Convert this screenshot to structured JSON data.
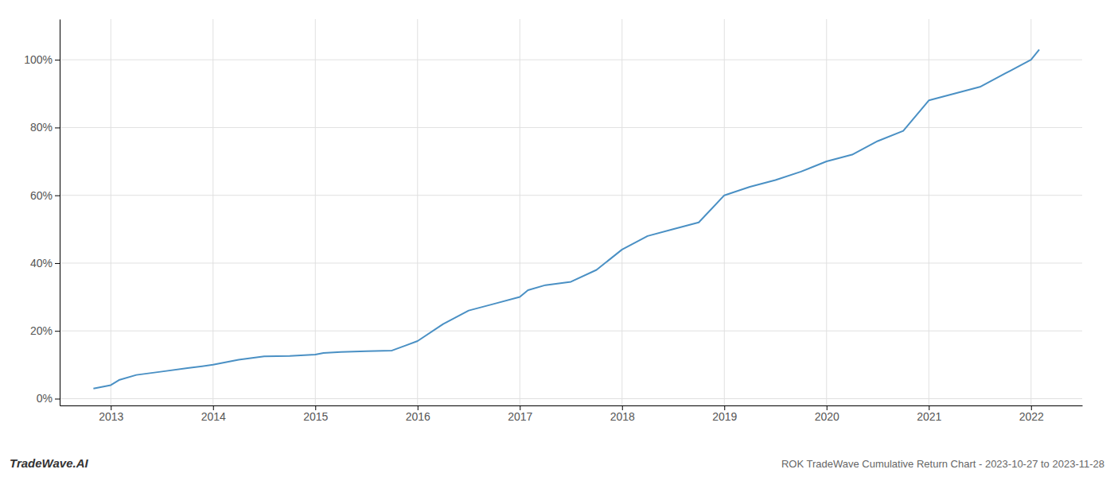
{
  "chart_data": {
    "type": "line",
    "title": "ROK TradeWave Cumulative Return Chart - 2023-10-27 to 2023-11-28",
    "annotations": [
      "TradeWave.AI"
    ],
    "color": "#4a90c4",
    "x": [
      2012.83,
      2013.0,
      2013.08,
      2013.25,
      2013.5,
      2013.75,
      2014.0,
      2014.25,
      2014.5,
      2014.75,
      2015.0,
      2015.08,
      2015.25,
      2015.5,
      2015.75,
      2016.0,
      2016.25,
      2016.5,
      2016.75,
      2017.0,
      2017.08,
      2017.25,
      2017.5,
      2017.75,
      2018.0,
      2018.25,
      2018.5,
      2018.75,
      2019.0,
      2019.25,
      2019.5,
      2019.75,
      2020.0,
      2020.25,
      2020.5,
      2020.75,
      2021.0,
      2021.25,
      2021.5,
      2021.75,
      2022.0,
      2022.08
    ],
    "values": [
      0.03,
      0.04,
      0.055,
      0.07,
      0.08,
      0.09,
      0.1,
      0.115,
      0.125,
      0.126,
      0.13,
      0.135,
      0.138,
      0.14,
      0.142,
      0.17,
      0.22,
      0.26,
      0.28,
      0.3,
      0.32,
      0.335,
      0.345,
      0.38,
      0.44,
      0.48,
      0.5,
      0.52,
      0.6,
      0.625,
      0.645,
      0.67,
      0.7,
      0.72,
      0.76,
      0.79,
      0.88,
      0.9,
      0.92,
      0.96,
      1.0,
      1.03
    ],
    "xlim": [
      2012.5,
      2022.5
    ],
    "ylim": [
      -0.02,
      1.12
    ],
    "xticks": [
      2013,
      2014,
      2015,
      2016,
      2017,
      2018,
      2019,
      2020,
      2021,
      2022
    ],
    "yticks": [
      {
        "value": 0.0,
        "label": "0%"
      },
      {
        "value": 0.2,
        "label": "20%"
      },
      {
        "value": 0.4,
        "label": "40%"
      },
      {
        "value": 0.6,
        "label": "60%"
      },
      {
        "value": 0.8,
        "label": "80%"
      },
      {
        "value": 1.0,
        "label": "100%"
      }
    ],
    "grid": true
  }
}
